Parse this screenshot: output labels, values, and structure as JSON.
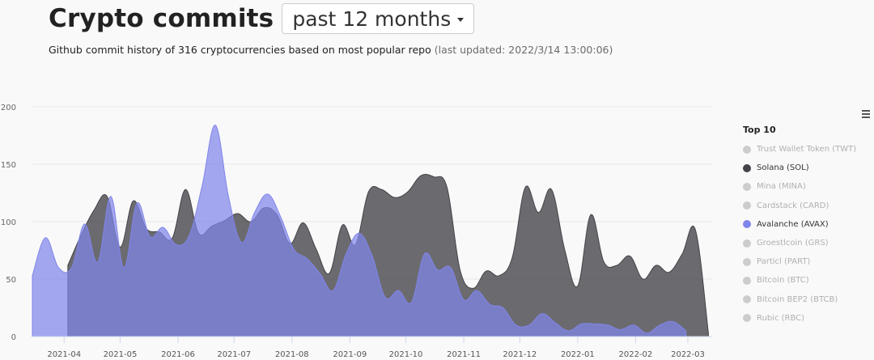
{
  "header": {
    "title": "Crypto commits",
    "range_label": "past 12 months",
    "subtitle_main": "Github commit history of 316 cryptocurrencies based on most popular repo",
    "subtitle_updated": "(last updated: 2022/3/14 13:00:06)"
  },
  "legend": {
    "title": "Top 10",
    "items": [
      {
        "label": "Trust Wallet Token (TWT)",
        "active": false
      },
      {
        "label": "Solana (SOL)",
        "active": true
      },
      {
        "label": "Mina (MINA)",
        "active": false
      },
      {
        "label": "Cardstack (CARD)",
        "active": false
      },
      {
        "label": "Avalanche (AVAX)",
        "active": true
      },
      {
        "label": "Groestlcoin (GRS)",
        "active": false
      },
      {
        "label": "Particl (PART)",
        "active": false
      },
      {
        "label": "Bitcoin (BTC)",
        "active": false
      },
      {
        "label": "Bitcoin BEP2 (BTCB)",
        "active": false
      },
      {
        "label": "Rubic (RBC)",
        "active": false
      }
    ]
  },
  "colors": {
    "solana": "#434348",
    "avalanche": "#8085e9",
    "inactive": "#cccccc",
    "inactive_text": "#b0b0b0",
    "active_text": "#333333"
  },
  "chart_data": {
    "type": "area",
    "xlim": [
      "2021-03-15",
      "2022-03-14"
    ],
    "ylim": [
      0,
      200
    ],
    "y_ticks": [
      0,
      50,
      100,
      150,
      200
    ],
    "x_ticks": [
      "2021-04",
      "2021-05",
      "2021-06",
      "2021-07",
      "2021-08",
      "2021-09",
      "2021-10",
      "2021-11",
      "2021-12",
      "2022-01",
      "2022-02",
      "2022-03"
    ],
    "grid": true,
    "legend_position": "right",
    "series": [
      {
        "name": "Solana (SOL)",
        "points": [
          [
            "2021-04-03",
            62
          ],
          [
            "2021-04-10",
            88
          ],
          [
            "2021-04-17",
            110
          ],
          [
            "2021-04-24",
            122
          ],
          [
            "2021-05-01",
            78
          ],
          [
            "2021-05-08",
            118
          ],
          [
            "2021-05-15",
            94
          ],
          [
            "2021-05-22",
            91
          ],
          [
            "2021-05-29",
            86
          ],
          [
            "2021-06-05",
            128
          ],
          [
            "2021-06-12",
            90
          ],
          [
            "2021-06-19",
            96
          ],
          [
            "2021-06-26",
            101
          ],
          [
            "2021-07-03",
            107
          ],
          [
            "2021-07-10",
            100
          ],
          [
            "2021-07-17",
            112
          ],
          [
            "2021-07-24",
            106
          ],
          [
            "2021-07-31",
            81
          ],
          [
            "2021-08-07",
            99
          ],
          [
            "2021-08-14",
            76
          ],
          [
            "2021-08-21",
            55
          ],
          [
            "2021-08-28",
            97
          ],
          [
            "2021-09-04",
            80
          ],
          [
            "2021-09-11",
            126
          ],
          [
            "2021-09-18",
            128
          ],
          [
            "2021-09-25",
            121
          ],
          [
            "2021-10-02",
            126
          ],
          [
            "2021-10-09",
            140
          ],
          [
            "2021-10-16",
            139
          ],
          [
            "2021-10-23",
            130
          ],
          [
            "2021-10-30",
            58
          ],
          [
            "2021-11-06",
            42
          ],
          [
            "2021-11-13",
            57
          ],
          [
            "2021-11-20",
            53
          ],
          [
            "2021-11-27",
            69
          ],
          [
            "2021-12-04",
            130
          ],
          [
            "2021-12-11",
            108
          ],
          [
            "2021-12-18",
            128
          ],
          [
            "2021-12-25",
            76
          ],
          [
            "2022-01-01",
            44
          ],
          [
            "2022-01-08",
            106
          ],
          [
            "2022-01-15",
            65
          ],
          [
            "2022-01-22",
            62
          ],
          [
            "2022-01-29",
            70
          ],
          [
            "2022-02-05",
            50
          ],
          [
            "2022-02-12",
            62
          ],
          [
            "2022-02-19",
            56
          ],
          [
            "2022-02-26",
            72
          ],
          [
            "2022-03-05",
            93
          ],
          [
            "2022-03-12",
            3
          ]
        ]
      },
      {
        "name": "Avalanche (AVAX)",
        "points": [
          [
            "2021-03-15",
            53
          ],
          [
            "2021-03-22",
            86
          ],
          [
            "2021-03-29",
            60
          ],
          [
            "2021-04-05",
            60
          ],
          [
            "2021-04-12",
            98
          ],
          [
            "2021-04-19",
            65
          ],
          [
            "2021-04-26",
            122
          ],
          [
            "2021-05-03",
            60
          ],
          [
            "2021-05-10",
            116
          ],
          [
            "2021-05-17",
            87
          ],
          [
            "2021-05-24",
            95
          ],
          [
            "2021-05-31",
            80
          ],
          [
            "2021-06-07",
            88
          ],
          [
            "2021-06-14",
            132
          ],
          [
            "2021-06-21",
            184
          ],
          [
            "2021-06-28",
            122
          ],
          [
            "2021-07-05",
            82
          ],
          [
            "2021-07-12",
            108
          ],
          [
            "2021-07-19",
            124
          ],
          [
            "2021-07-26",
            104
          ],
          [
            "2021-08-02",
            76
          ],
          [
            "2021-08-09",
            68
          ],
          [
            "2021-08-16",
            55
          ],
          [
            "2021-08-23",
            40
          ],
          [
            "2021-08-30",
            72
          ],
          [
            "2021-09-06",
            90
          ],
          [
            "2021-09-13",
            70
          ],
          [
            "2021-09-20",
            34
          ],
          [
            "2021-09-27",
            40
          ],
          [
            "2021-10-04",
            30
          ],
          [
            "2021-10-11",
            72
          ],
          [
            "2021-10-18",
            58
          ],
          [
            "2021-10-25",
            60
          ],
          [
            "2021-11-01",
            32
          ],
          [
            "2021-11-08",
            40
          ],
          [
            "2021-11-15",
            28
          ],
          [
            "2021-11-22",
            25
          ],
          [
            "2021-11-29",
            10
          ],
          [
            "2021-12-06",
            10
          ],
          [
            "2021-12-13",
            20
          ],
          [
            "2021-12-20",
            12
          ],
          [
            "2021-12-27",
            5
          ],
          [
            "2022-01-03",
            11
          ],
          [
            "2022-01-10",
            11
          ],
          [
            "2022-01-17",
            10
          ],
          [
            "2022-01-24",
            6
          ],
          [
            "2022-01-31",
            10
          ],
          [
            "2022-02-07",
            3
          ],
          [
            "2022-02-14",
            10
          ],
          [
            "2022-02-21",
            13
          ],
          [
            "2022-02-28",
            5
          ]
        ]
      }
    ]
  }
}
